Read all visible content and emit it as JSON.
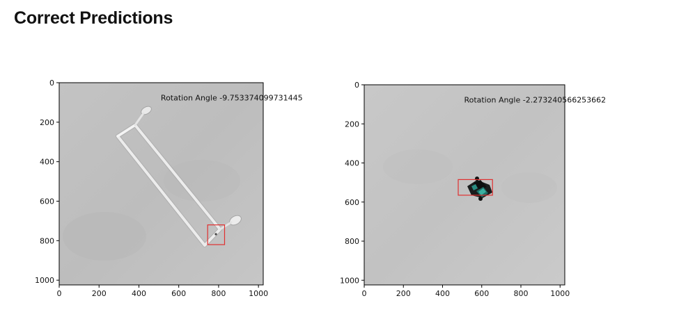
{
  "page": {
    "heading": "Correct Predictions"
  },
  "plots": [
    {
      "image": "gray photo of a white metal rectangular frame (hanger rod) lying diagonally",
      "annotation": "Rotation Angle -9.753374099731445",
      "x_ticks": [
        "0",
        "200",
        "400",
        "600",
        "800",
        "1000"
      ],
      "y_ticks": [
        "0",
        "200",
        "400",
        "600",
        "800",
        "1000"
      ],
      "xlim": [
        0,
        1024
      ],
      "ylim": [
        1024,
        0
      ],
      "bbox_data": {
        "x0": 745,
        "y0": 720,
        "x1": 830,
        "y1": 820
      },
      "bbox_color": "#e03030",
      "annotation_xy": [
        510,
        90
      ]
    },
    {
      "image": "gray photo of a small black and teal object at center",
      "annotation": "Rotation Angle -2.273240566253662",
      "x_ticks": [
        "0",
        "200",
        "400",
        "600",
        "800",
        "1000"
      ],
      "y_ticks": [
        "0",
        "200",
        "400",
        "600",
        "800",
        "1000"
      ],
      "xlim": [
        0,
        1024
      ],
      "ylim": [
        1024,
        0
      ],
      "bbox_data": {
        "x0": 480,
        "y0": 485,
        "x1": 655,
        "y1": 565
      },
      "bbox_color": "#e03030",
      "annotation_xy": [
        510,
        90
      ]
    }
  ]
}
